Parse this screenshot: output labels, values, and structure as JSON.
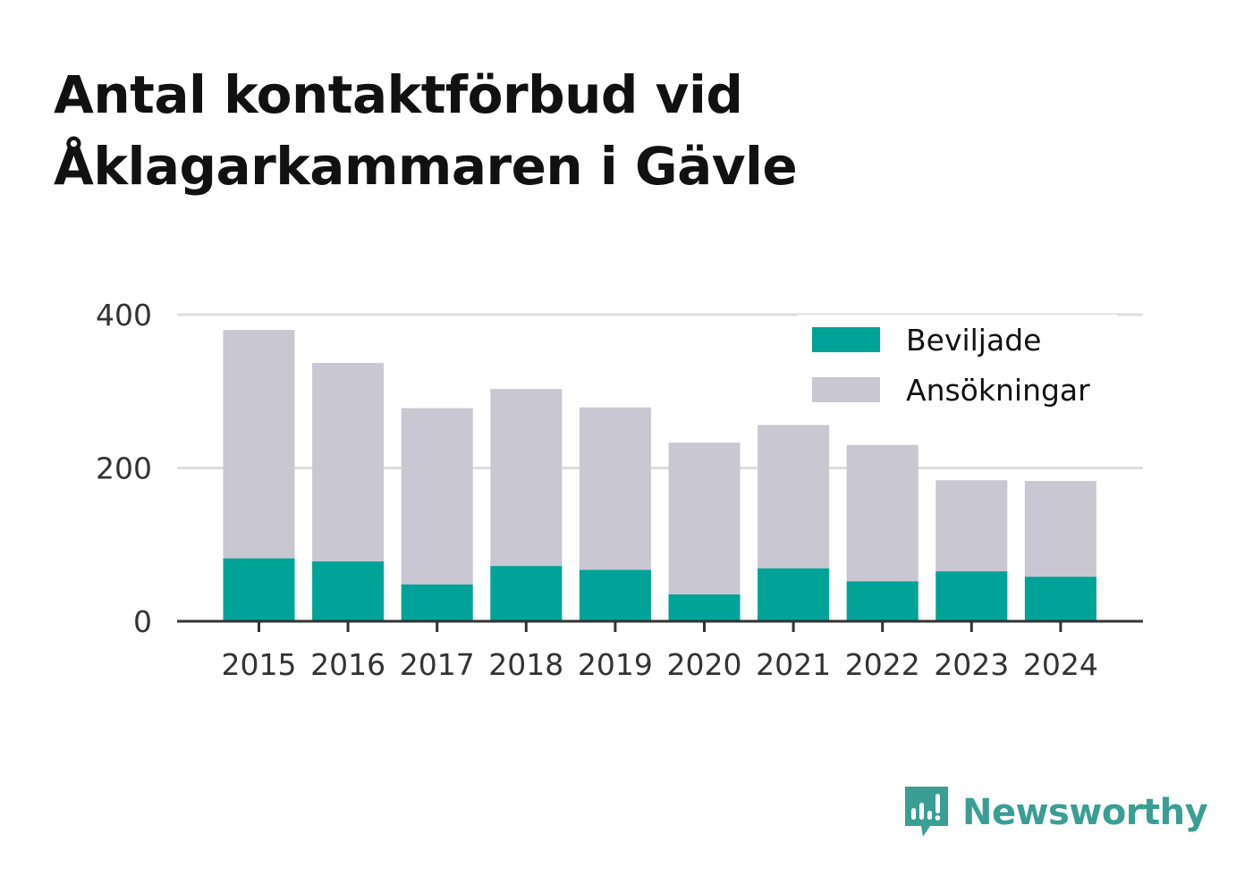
{
  "title": {
    "line1": "Antal kontaktförbud vid",
    "line2": "Åklagarkammaren i Gävle"
  },
  "brand": {
    "name": "Newsworthy",
    "icon": "newsworthy-logo-icon",
    "color": "#3a9e94"
  },
  "chart_data": {
    "type": "bar",
    "stacked": false,
    "overlay": true,
    "categories": [
      "2015",
      "2016",
      "2017",
      "2018",
      "2019",
      "2020",
      "2021",
      "2022",
      "2023",
      "2024"
    ],
    "series": [
      {
        "name": "Ansökningar",
        "color": "#c8c7d2",
        "values": [
          380,
          337,
          278,
          303,
          279,
          233,
          256,
          230,
          184,
          183
        ]
      },
      {
        "name": "Beviljade",
        "color": "#00a398",
        "values": [
          82,
          78,
          48,
          72,
          67,
          35,
          69,
          52,
          65,
          58
        ]
      }
    ],
    "legend_order": [
      "Beviljade",
      "Ansökningar"
    ],
    "legend_position": "top-right",
    "yticks": [
      0,
      200,
      400
    ],
    "ylim": [
      0,
      400
    ],
    "grid": true,
    "xlabel": "",
    "ylabel": ""
  }
}
